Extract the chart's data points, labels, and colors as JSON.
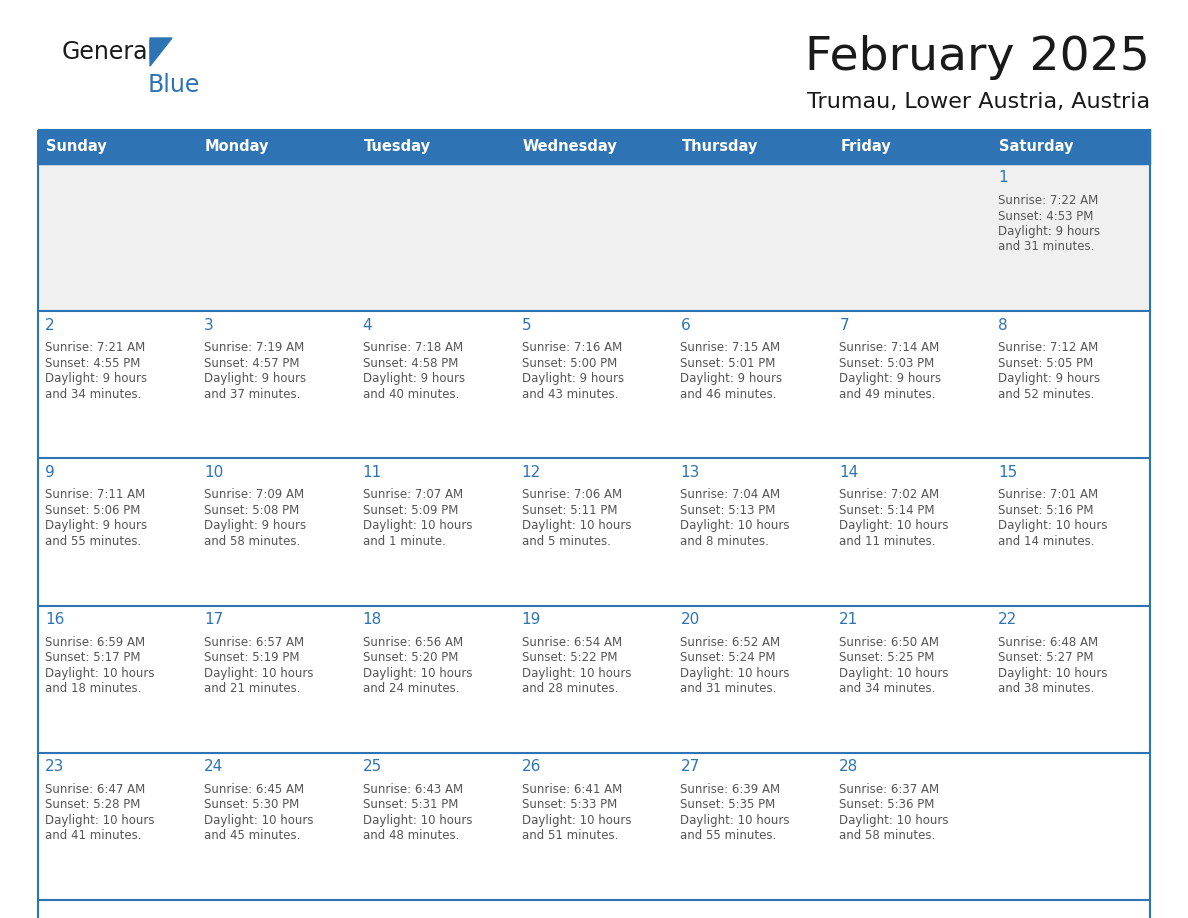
{
  "title": "February 2025",
  "subtitle": "Trumau, Lower Austria, Austria",
  "days_of_week": [
    "Sunday",
    "Monday",
    "Tuesday",
    "Wednesday",
    "Thursday",
    "Friday",
    "Saturday"
  ],
  "header_bg": "#2E74B5",
  "header_text": "#FFFFFF",
  "row_bg_light": "#FFFFFF",
  "row_bg_gray": "#F0F0F0",
  "divider_color": "#2E74B5",
  "day_number_color": "#2E74B5",
  "cell_text_color": "#555555",
  "weeks": [
    [
      {
        "day": null,
        "info": null
      },
      {
        "day": null,
        "info": null
      },
      {
        "day": null,
        "info": null
      },
      {
        "day": null,
        "info": null
      },
      {
        "day": null,
        "info": null
      },
      {
        "day": null,
        "info": null
      },
      {
        "day": 1,
        "info": "Sunrise: 7:22 AM\nSunset: 4:53 PM\nDaylight: 9 hours\nand 31 minutes."
      }
    ],
    [
      {
        "day": 2,
        "info": "Sunrise: 7:21 AM\nSunset: 4:55 PM\nDaylight: 9 hours\nand 34 minutes."
      },
      {
        "day": 3,
        "info": "Sunrise: 7:19 AM\nSunset: 4:57 PM\nDaylight: 9 hours\nand 37 minutes."
      },
      {
        "day": 4,
        "info": "Sunrise: 7:18 AM\nSunset: 4:58 PM\nDaylight: 9 hours\nand 40 minutes."
      },
      {
        "day": 5,
        "info": "Sunrise: 7:16 AM\nSunset: 5:00 PM\nDaylight: 9 hours\nand 43 minutes."
      },
      {
        "day": 6,
        "info": "Sunrise: 7:15 AM\nSunset: 5:01 PM\nDaylight: 9 hours\nand 46 minutes."
      },
      {
        "day": 7,
        "info": "Sunrise: 7:14 AM\nSunset: 5:03 PM\nDaylight: 9 hours\nand 49 minutes."
      },
      {
        "day": 8,
        "info": "Sunrise: 7:12 AM\nSunset: 5:05 PM\nDaylight: 9 hours\nand 52 minutes."
      }
    ],
    [
      {
        "day": 9,
        "info": "Sunrise: 7:11 AM\nSunset: 5:06 PM\nDaylight: 9 hours\nand 55 minutes."
      },
      {
        "day": 10,
        "info": "Sunrise: 7:09 AM\nSunset: 5:08 PM\nDaylight: 9 hours\nand 58 minutes."
      },
      {
        "day": 11,
        "info": "Sunrise: 7:07 AM\nSunset: 5:09 PM\nDaylight: 10 hours\nand 1 minute."
      },
      {
        "day": 12,
        "info": "Sunrise: 7:06 AM\nSunset: 5:11 PM\nDaylight: 10 hours\nand 5 minutes."
      },
      {
        "day": 13,
        "info": "Sunrise: 7:04 AM\nSunset: 5:13 PM\nDaylight: 10 hours\nand 8 minutes."
      },
      {
        "day": 14,
        "info": "Sunrise: 7:02 AM\nSunset: 5:14 PM\nDaylight: 10 hours\nand 11 minutes."
      },
      {
        "day": 15,
        "info": "Sunrise: 7:01 AM\nSunset: 5:16 PM\nDaylight: 10 hours\nand 14 minutes."
      }
    ],
    [
      {
        "day": 16,
        "info": "Sunrise: 6:59 AM\nSunset: 5:17 PM\nDaylight: 10 hours\nand 18 minutes."
      },
      {
        "day": 17,
        "info": "Sunrise: 6:57 AM\nSunset: 5:19 PM\nDaylight: 10 hours\nand 21 minutes."
      },
      {
        "day": 18,
        "info": "Sunrise: 6:56 AM\nSunset: 5:20 PM\nDaylight: 10 hours\nand 24 minutes."
      },
      {
        "day": 19,
        "info": "Sunrise: 6:54 AM\nSunset: 5:22 PM\nDaylight: 10 hours\nand 28 minutes."
      },
      {
        "day": 20,
        "info": "Sunrise: 6:52 AM\nSunset: 5:24 PM\nDaylight: 10 hours\nand 31 minutes."
      },
      {
        "day": 21,
        "info": "Sunrise: 6:50 AM\nSunset: 5:25 PM\nDaylight: 10 hours\nand 34 minutes."
      },
      {
        "day": 22,
        "info": "Sunrise: 6:48 AM\nSunset: 5:27 PM\nDaylight: 10 hours\nand 38 minutes."
      }
    ],
    [
      {
        "day": 23,
        "info": "Sunrise: 6:47 AM\nSunset: 5:28 PM\nDaylight: 10 hours\nand 41 minutes."
      },
      {
        "day": 24,
        "info": "Sunrise: 6:45 AM\nSunset: 5:30 PM\nDaylight: 10 hours\nand 45 minutes."
      },
      {
        "day": 25,
        "info": "Sunrise: 6:43 AM\nSunset: 5:31 PM\nDaylight: 10 hours\nand 48 minutes."
      },
      {
        "day": 26,
        "info": "Sunrise: 6:41 AM\nSunset: 5:33 PM\nDaylight: 10 hours\nand 51 minutes."
      },
      {
        "day": 27,
        "info": "Sunrise: 6:39 AM\nSunset: 5:35 PM\nDaylight: 10 hours\nand 55 minutes."
      },
      {
        "day": 28,
        "info": "Sunrise: 6:37 AM\nSunset: 5:36 PM\nDaylight: 10 hours\nand 58 minutes."
      },
      {
        "day": null,
        "info": null
      }
    ]
  ]
}
